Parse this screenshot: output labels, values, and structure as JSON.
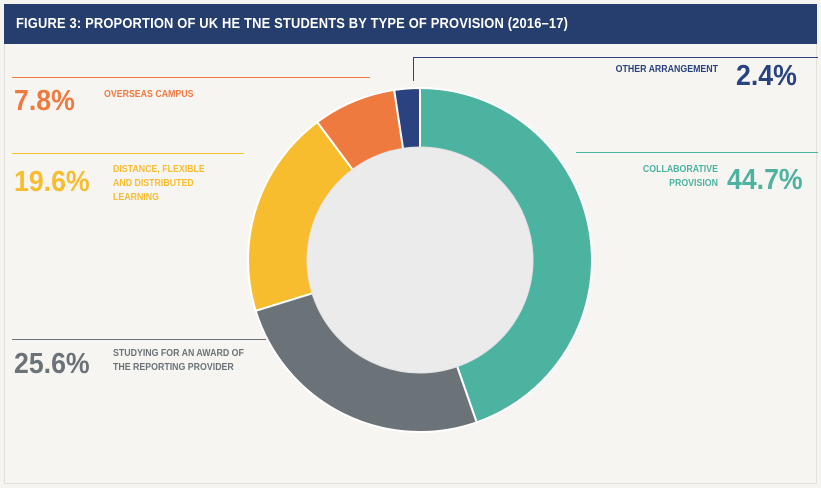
{
  "title": "FIGURE 3: PROPORTION OF UK HE TNE STUDENTS BY TYPE OF PROVISION (2016–17)",
  "colors": {
    "header_bg": "#263e6e",
    "collaborative": "#4db3a1",
    "studying_award": "#6b7379",
    "distance": "#f7bd2f",
    "overseas": "#ef7a3f",
    "other": "#2a4380"
  },
  "chart_data": {
    "type": "pie",
    "style": "donut",
    "title": "FIGURE 3: PROPORTION OF UK HE TNE STUDENTS BY TYPE OF PROVISION (2016–17)",
    "unit": "%",
    "slices": [
      {
        "label": "COLLABORATIVE PROVISION",
        "value": 44.7,
        "display": "44.7%",
        "color": "#4db3a1"
      },
      {
        "label": "STUDYING FOR AN AWARD OF THE REPORTING PROVIDER",
        "value": 25.6,
        "display": "25.6%",
        "color": "#6b7379"
      },
      {
        "label": "DISTANCE, FLEXIBLE AND DISTRIBUTED LEARNING",
        "value": 19.6,
        "display": "19.6%",
        "color": "#f7bd2f"
      },
      {
        "label": "OVERSEAS CAMPUS",
        "value": 7.8,
        "display": "7.8%",
        "color": "#ef7a3f"
      },
      {
        "label": "OTHER ARRANGEMENT",
        "value": 2.4,
        "display": "2.4%",
        "color": "#2a4380"
      }
    ]
  },
  "labels": {
    "collaborative": {
      "pct": "44.7%",
      "text": "COLLABORATIVE PROVISION"
    },
    "studying_award": {
      "pct": "25.6%",
      "text": "STUDYING FOR AN AWARD OF THE REPORTING PROVIDER"
    },
    "distance": {
      "pct": "19.6%",
      "text": "DISTANCE, FLEXIBLE AND DISTRIBUTED LEARNING"
    },
    "overseas": {
      "pct": "7.8%",
      "text": "OVERSEAS CAMPUS"
    },
    "other": {
      "pct": "2.4%",
      "text": "OTHER ARRANGEMENT"
    }
  }
}
